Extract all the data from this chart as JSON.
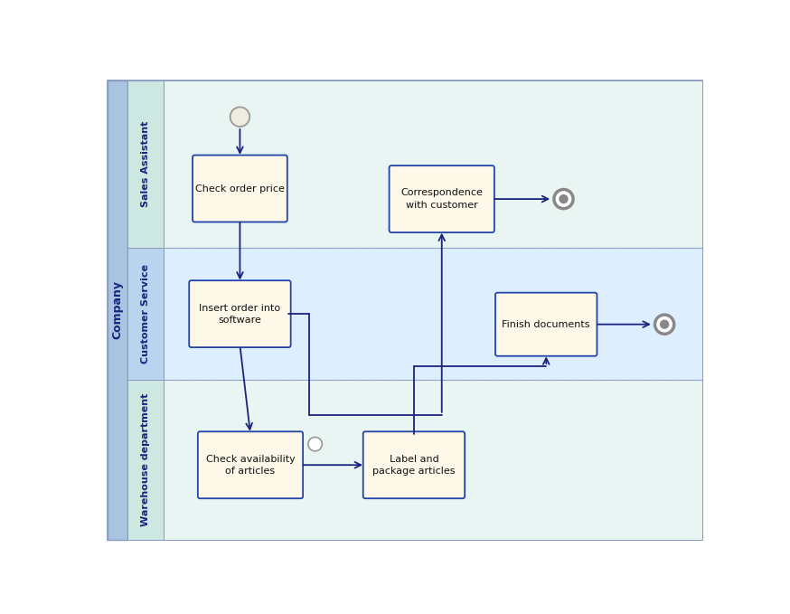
{
  "fig_width": 8.74,
  "fig_height": 6.79,
  "bg_color": "#ffffff",
  "pool_bg": "#a8c4e0",
  "lane1_bg": "#e8f5f2",
  "lane2_bg": "#ddeeff",
  "lane3_bg": "#e8f5f2",
  "lane_strip_color": "#b8d8e8",
  "box_fill": "#fdf8e8",
  "box_edge": "#2244aa",
  "arrow_color": "#1a237e",
  "dashed_line_color": "#99aacc",
  "pool_label": "Company",
  "lanes": [
    "Sales Assistant",
    "Customer Service",
    "Warehouse department"
  ],
  "lane_label_color": "#1a237e",
  "start_circle_fill": "#f0ece0",
  "start_circle_edge": "#999999"
}
